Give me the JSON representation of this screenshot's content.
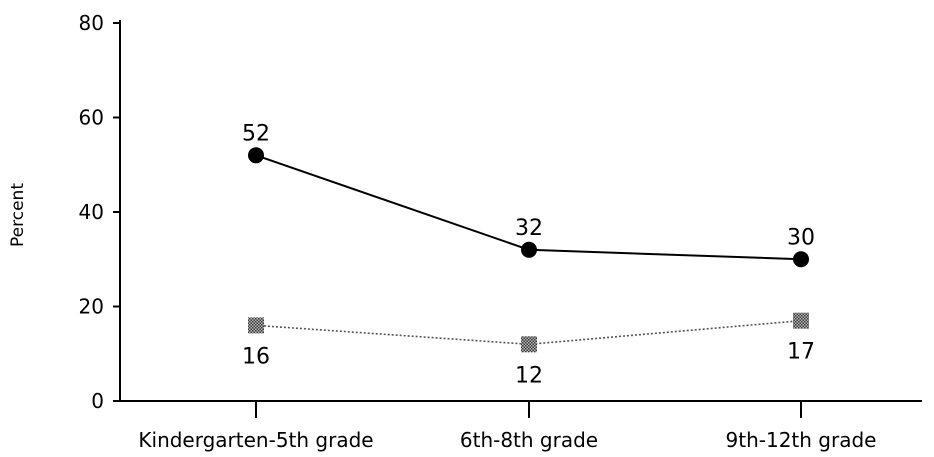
{
  "chart_data": {
    "type": "line",
    "title": "",
    "xlabel": "",
    "ylabel": "Percent",
    "ylim": [
      0,
      80
    ],
    "yticks": [
      0,
      20,
      40,
      60,
      80
    ],
    "categories": [
      "Kindergarten-5th grade",
      "6th-8th grade",
      "9th-12th grade"
    ],
    "series": [
      {
        "values": [
          52,
          32,
          30
        ],
        "marker": "circle",
        "line_style": "solid",
        "color": "#000000",
        "labels_position": "above"
      },
      {
        "values": [
          16,
          12,
          17
        ],
        "marker": "square",
        "line_style": "dotted",
        "color": "#555555",
        "labels_position": "below"
      }
    ],
    "grid": false,
    "legend": "none"
  }
}
